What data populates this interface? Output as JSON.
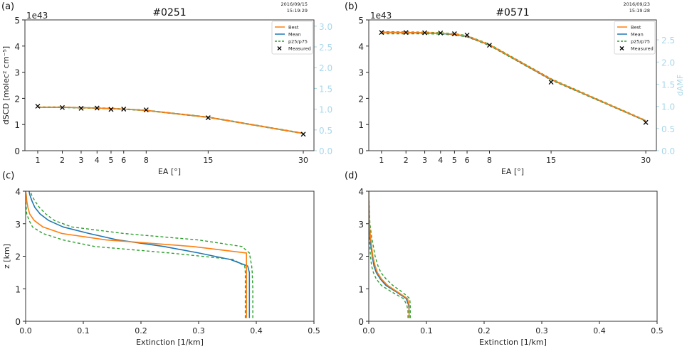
{
  "colors": {
    "best": "#ff7f0e",
    "mean": "#1f77b4",
    "p25p75": "#2ca02c",
    "measured": "#000000",
    "right_axis": "#a9d8ea"
  },
  "chart_data": [
    {
      "panel": "(a)",
      "type": "line",
      "title": "#0251",
      "timestamp": [
        "2016/09/15",
        "15:19:29"
      ],
      "xlabel": "EA [°]",
      "ylabel": "dSCD [molec² cm⁻⁵]",
      "y_exponent": "1e43",
      "xscale": "sqrt",
      "xlim": [
        0.615,
        32.0
      ],
      "ylim": [
        0,
        5
      ],
      "x_ticks": [
        "1",
        "2",
        "3",
        "4",
        "5",
        "6",
        "8",
        "15",
        "30"
      ],
      "y_ticks": [
        "0",
        "1",
        "2",
        "3",
        "4",
        "5"
      ],
      "right_axis": {
        "label": "",
        "ylim": [
          0,
          3.15
        ],
        "ticks": [
          "0.0",
          "0.5",
          "1.0",
          "1.5",
          "2.0",
          "2.5",
          "3.0"
        ]
      },
      "legend": {
        "position": "top-right",
        "entries": [
          "Best",
          "Mean",
          "p25/p75",
          "Measured"
        ]
      },
      "x": [
        1,
        2,
        3,
        4,
        5,
        6,
        8,
        15,
        30
      ],
      "series": [
        {
          "name": "Best",
          "values": [
            1.66,
            1.66,
            1.64,
            1.63,
            1.61,
            1.59,
            1.54,
            1.28,
            0.66
          ]
        },
        {
          "name": "Mean",
          "values": [
            1.66,
            1.66,
            1.64,
            1.63,
            1.61,
            1.59,
            1.54,
            1.28,
            0.66
          ]
        },
        {
          "name": "p25",
          "values": [
            1.65,
            1.65,
            1.63,
            1.62,
            1.6,
            1.58,
            1.53,
            1.27,
            0.65
          ]
        },
        {
          "name": "p75",
          "values": [
            1.67,
            1.67,
            1.65,
            1.64,
            1.62,
            1.6,
            1.55,
            1.29,
            0.67
          ]
        },
        {
          "name": "Measured",
          "values": [
            1.7,
            1.65,
            1.62,
            1.63,
            1.58,
            1.59,
            1.56,
            1.26,
            0.63
          ]
        }
      ]
    },
    {
      "panel": "(b)",
      "type": "line",
      "title": "#0571",
      "timestamp": [
        "2016/09/23",
        "15:19:28"
      ],
      "xlabel": "EA [°]",
      "ylabel": "",
      "y_exponent": "1e43",
      "xscale": "sqrt",
      "xlim": [
        0.615,
        32.0
      ],
      "ylim": [
        0,
        5
      ],
      "x_ticks": [
        "1",
        "2",
        "3",
        "4",
        "5",
        "6",
        "8",
        "15",
        "30"
      ],
      "y_ticks": [
        "0",
        "1",
        "2",
        "3",
        "4",
        "5"
      ],
      "right_axis": {
        "label": "dAMF",
        "ylim": [
          0,
          2.95
        ],
        "ticks": [
          "0.0",
          "0.5",
          "1.0",
          "1.5",
          "2.0",
          "2.5"
        ]
      },
      "legend": {
        "position": "top-right",
        "entries": [
          "Best",
          "Mean",
          "p25/p75",
          "Measured"
        ]
      },
      "x": [
        1,
        2,
        3,
        4,
        5,
        6,
        8,
        15,
        30
      ],
      "series": [
        {
          "name": "Best",
          "values": [
            4.53,
            4.52,
            4.51,
            4.49,
            4.45,
            4.38,
            4.05,
            2.73,
            1.15
          ]
        },
        {
          "name": "Mean",
          "values": [
            4.52,
            4.51,
            4.5,
            4.48,
            4.44,
            4.37,
            4.04,
            2.72,
            1.14
          ]
        },
        {
          "name": "p25",
          "values": [
            4.47,
            4.47,
            4.47,
            4.46,
            4.42,
            4.35,
            4.02,
            2.7,
            1.13
          ]
        },
        {
          "name": "p75",
          "values": [
            4.55,
            4.54,
            4.53,
            4.51,
            4.47,
            4.4,
            4.07,
            2.75,
            1.16
          ]
        },
        {
          "name": "Measured",
          "values": [
            4.52,
            4.52,
            4.51,
            4.5,
            4.47,
            4.42,
            4.03,
            2.62,
            1.08
          ]
        }
      ]
    },
    {
      "panel": "(c)",
      "type": "line",
      "title": "",
      "xlabel": "Extinction [1/km]",
      "ylabel": "z [km]",
      "xlim": [
        0,
        0.5
      ],
      "ylim": [
        0,
        4
      ],
      "x_ticks": [
        "0.0",
        "0.1",
        "0.2",
        "0.3",
        "0.4",
        "0.5"
      ],
      "y_ticks": [
        "0",
        "1",
        "2",
        "3",
        "4"
      ],
      "z": [
        0.1,
        0.5,
        1.0,
        1.5,
        1.7,
        1.9,
        2.1,
        2.3,
        2.5,
        2.7,
        2.9,
        3.1,
        3.3,
        3.5,
        3.7,
        3.9,
        4.0
      ],
      "series": [
        {
          "name": "Best",
          "values": [
            0.383,
            0.383,
            0.383,
            0.383,
            0.383,
            0.383,
            0.383,
            0.29,
            0.14,
            0.063,
            0.03,
            0.015,
            0.007,
            0.004,
            0.002,
            0.001,
            0.0
          ]
        },
        {
          "name": "Mean",
          "values": [
            0.388,
            0.388,
            0.388,
            0.388,
            0.385,
            0.355,
            0.3,
            0.24,
            0.16,
            0.11,
            0.065,
            0.04,
            0.025,
            0.016,
            0.011,
            0.007,
            0.006
          ]
        },
        {
          "name": "p25",
          "values": [
            0.381,
            0.381,
            0.381,
            0.381,
            0.38,
            0.36,
            0.25,
            0.12,
            0.065,
            0.03,
            0.012,
            0.006,
            0.002,
            0.001,
            0.0,
            0.0,
            0.0
          ]
        },
        {
          "name": "p75",
          "values": [
            0.394,
            0.394,
            0.394,
            0.393,
            0.392,
            0.39,
            0.388,
            0.375,
            0.3,
            0.17,
            0.08,
            0.05,
            0.035,
            0.024,
            0.016,
            0.01,
            0.009
          ]
        }
      ]
    },
    {
      "panel": "(d)",
      "type": "line",
      "title": "",
      "xlabel": "Extinction [1/km]",
      "ylabel": "",
      "xlim": [
        0,
        0.5
      ],
      "ylim": [
        0,
        4
      ],
      "x_ticks": [
        "0.0",
        "0.1",
        "0.2",
        "0.3",
        "0.4",
        "0.5"
      ],
      "y_ticks": [
        "0",
        "1",
        "2",
        "3",
        "4"
      ],
      "z": [
        0.1,
        0.3,
        0.5,
        0.7,
        0.9,
        1.1,
        1.3,
        1.5,
        1.7,
        2.0,
        2.3,
        2.6,
        3.0,
        3.5,
        4.0
      ],
      "series": [
        {
          "name": "Best",
          "values": [
            0.07,
            0.07,
            0.07,
            0.067,
            0.05,
            0.033,
            0.022,
            0.015,
            0.011,
            0.007,
            0.005,
            0.003,
            0.001,
            0.0005,
            0.0
          ]
        },
        {
          "name": "Mean",
          "values": [
            0.07,
            0.07,
            0.069,
            0.065,
            0.048,
            0.03,
            0.02,
            0.013,
            0.009,
            0.006,
            0.004,
            0.002,
            0.001,
            0.0005,
            0.0
          ]
        },
        {
          "name": "p25",
          "values": [
            0.068,
            0.068,
            0.066,
            0.06,
            0.04,
            0.022,
            0.013,
            0.008,
            0.005,
            0.003,
            0.002,
            0.001,
            0.0,
            0.0,
            0.0
          ]
        },
        {
          "name": "p75",
          "values": [
            0.072,
            0.072,
            0.072,
            0.071,
            0.058,
            0.042,
            0.03,
            0.021,
            0.016,
            0.011,
            0.008,
            0.005,
            0.002,
            0.001,
            0.0
          ]
        }
      ]
    }
  ]
}
